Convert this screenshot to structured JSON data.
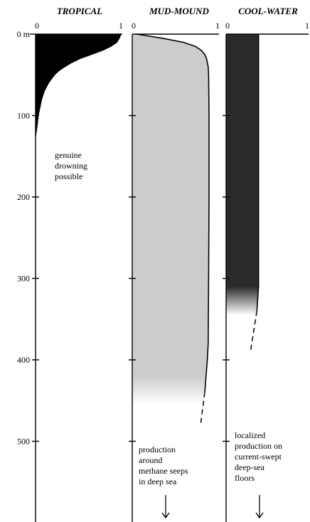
{
  "chart_data": {
    "type": "area",
    "depth_unit": "m",
    "y_axis": {
      "range": [
        0,
        580
      ],
      "ticks": [
        0,
        100,
        200,
        300,
        400,
        500
      ],
      "tick_labels": [
        "0 m",
        "100",
        "200",
        "300",
        "400",
        "500"
      ]
    },
    "panels": [
      {
        "id": "tropical",
        "title": "TROPICAL",
        "x_range": [
          0,
          1
        ],
        "x_tick_labels": [
          "0",
          "1"
        ],
        "fill_color": "#000000",
        "profile": [
          [
            0,
            1
          ],
          [
            5,
            0.98
          ],
          [
            10,
            0.95
          ],
          [
            15,
            0.88
          ],
          [
            20,
            0.78
          ],
          [
            25,
            0.65
          ],
          [
            30,
            0.52
          ],
          [
            35,
            0.42
          ],
          [
            40,
            0.34
          ],
          [
            45,
            0.27
          ],
          [
            50,
            0.22
          ],
          [
            60,
            0.15
          ],
          [
            70,
            0.1
          ],
          [
            80,
            0.07
          ],
          [
            90,
            0.05
          ],
          [
            100,
            0.03
          ],
          [
            110,
            0.02
          ],
          [
            125,
            0
          ]
        ],
        "annotation": [
          "genuine",
          "drowning",
          "possible"
        ]
      },
      {
        "id": "mud-mound",
        "title": "MUD-MOUND",
        "x_range": [
          0,
          1
        ],
        "x_tick_labels": [
          "0",
          "1"
        ],
        "fill_color": "#cccccc",
        "profile": [
          [
            0,
            0.05
          ],
          [
            5,
            0.35
          ],
          [
            10,
            0.6
          ],
          [
            15,
            0.74
          ],
          [
            20,
            0.81
          ],
          [
            25,
            0.85
          ],
          [
            30,
            0.87
          ],
          [
            40,
            0.89
          ],
          [
            50,
            0.895
          ],
          [
            100,
            0.9
          ],
          [
            200,
            0.9
          ],
          [
            300,
            0.895
          ],
          [
            380,
            0.89
          ],
          [
            400,
            0.88
          ],
          [
            440,
            0.85
          ]
        ],
        "fade_start": 420,
        "fade_end": 455,
        "dashed_profile": [
          [
            440,
            0.85
          ],
          [
            480,
            0.8
          ]
        ],
        "annotation": [
          "production",
          "around",
          "methane seeps",
          "in deep sea"
        ]
      },
      {
        "id": "cool-water",
        "title": "COOL-WATER",
        "x_range": [
          0,
          1
        ],
        "x_tick_labels": [
          "0",
          "1"
        ],
        "fill_color": "#2a2a2a",
        "fill_value": 0.4,
        "profile": [
          [
            0,
            0.4
          ],
          [
            310,
            0.4
          ],
          [
            340,
            0.38
          ]
        ],
        "fade_start": 310,
        "fade_end": 345,
        "dashed_profile": [
          [
            340,
            0.38
          ],
          [
            365,
            0.34
          ],
          [
            390,
            0.3
          ]
        ],
        "annotation": [
          "localized",
          "production on",
          "current-swept",
          "deep-sea",
          "floors"
        ]
      }
    ]
  }
}
